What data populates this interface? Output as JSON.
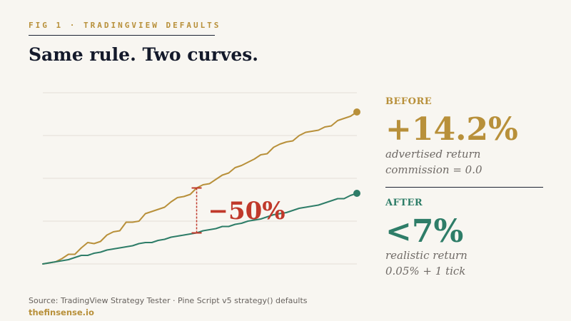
{
  "header": {
    "kicker": "FIG 1 · TRADINGVIEW DEFAULTS",
    "title": "Same rule. Two curves."
  },
  "chart_data": {
    "type": "line",
    "title": "",
    "xlabel": "",
    "ylabel": "",
    "grid": true,
    "series": [
      {
        "key": "before",
        "color": "#b8903a",
        "values": [
          0.0,
          0.1,
          0.2,
          0.5,
          0.9,
          0.9,
          1.5,
          2.0,
          1.9,
          2.1,
          2.7,
          3.0,
          3.1,
          3.9,
          3.9,
          4.0,
          4.7,
          4.9,
          5.1,
          5.3,
          5.8,
          6.2,
          6.3,
          6.5,
          7.1,
          7.4,
          7.5,
          7.9,
          8.3,
          8.5,
          9.0,
          9.2,
          9.5,
          9.8,
          10.2,
          10.3,
          10.9,
          11.2,
          11.4,
          11.5,
          12.0,
          12.3,
          12.4,
          12.5,
          12.8,
          12.9,
          13.4,
          13.6,
          13.8,
          14.2
        ]
      },
      {
        "key": "after",
        "color": "#2e7d68",
        "values": [
          0.0,
          0.1,
          0.2,
          0.3,
          0.4,
          0.6,
          0.8,
          0.8,
          1.0,
          1.1,
          1.3,
          1.4,
          1.5,
          1.6,
          1.7,
          1.9,
          2.0,
          2.0,
          2.2,
          2.3,
          2.5,
          2.6,
          2.7,
          2.8,
          2.9,
          3.1,
          3.2,
          3.3,
          3.5,
          3.5,
          3.7,
          3.8,
          4.0,
          4.1,
          4.2,
          4.4,
          4.6,
          4.7,
          4.8,
          5.0,
          5.2,
          5.3,
          5.4,
          5.5,
          5.7,
          5.9,
          6.1,
          6.1,
          6.4,
          6.6
        ]
      }
    ],
    "ylim": [
      0,
      16
    ],
    "annotation": {
      "text": "−50%",
      "x_index": 24,
      "color": "#c0392b"
    }
  },
  "panel": {
    "before_label": "BEFORE",
    "before_value": "+14.2%",
    "before_note_1": "advertised return",
    "before_note_2": "commission = 0.0",
    "after_label": "AFTER",
    "after_value": "<7%",
    "after_note_1": "realistic return",
    "after_note_2": "0.05% + 1 tick"
  },
  "footer": {
    "source": "Source: TradingView Strategy Tester · Pine Script v5 strategy() defaults",
    "brand": "thefinsense.io"
  },
  "colors": {
    "gold": "#b8903a",
    "green": "#2e7d68",
    "red": "#c0392b",
    "ink": "#141a2b"
  }
}
